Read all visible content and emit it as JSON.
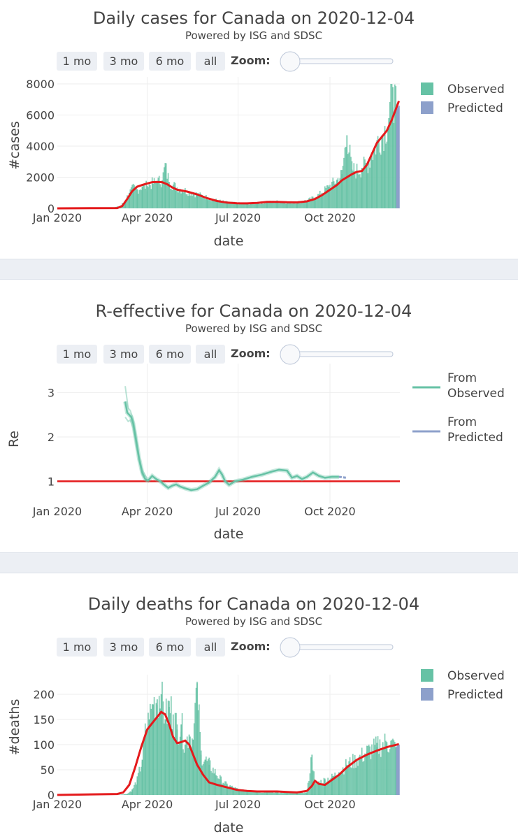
{
  "range_buttons": [
    "1 mo",
    "3 mo",
    "6 mo",
    "all"
  ],
  "zoom_label": "Zoom:",
  "subtitle": "Powered by ISG and SDSC",
  "colors": {
    "observed": "#66c2a5",
    "predicted": "#8da0cb",
    "trend": "#e41a1c",
    "from_observed": "#66c2a5",
    "from_predicted": "#8da0cb"
  },
  "chart_data": [
    {
      "type": "bar",
      "title": "Daily cases for Canada on 2020-12-04",
      "xlabel": "date",
      "ylabel": "#cases",
      "xlim": [
        "2020-01-01",
        "2020-12-04"
      ],
      "ylim": [
        0,
        8000
      ],
      "x_ticks": [
        "Jan 2020",
        "Apr 2020",
        "Jul 2020",
        "Oct 2020"
      ],
      "y_ticks": [
        0,
        2000,
        4000,
        6000,
        8000
      ],
      "grid": true,
      "legend": {
        "position": "top-right",
        "entries": [
          "Observed",
          "Predicted"
        ]
      },
      "observed": [
        [
          0,
          0
        ],
        [
          40,
          5
        ],
        [
          55,
          30
        ],
        [
          63,
          150
        ],
        [
          68,
          500
        ],
        [
          72,
          1000
        ],
        [
          76,
          1300
        ],
        [
          80,
          1200
        ],
        [
          85,
          1400
        ],
        [
          90,
          1450
        ],
        [
          95,
          1600
        ],
        [
          100,
          1700
        ],
        [
          105,
          1800
        ],
        [
          108,
          2700
        ],
        [
          112,
          1700
        ],
        [
          118,
          1400
        ],
        [
          125,
          1200
        ],
        [
          132,
          1050
        ],
        [
          140,
          900
        ],
        [
          150,
          700
        ],
        [
          160,
          500
        ],
        [
          170,
          380
        ],
        [
          180,
          320
        ],
        [
          190,
          300
        ],
        [
          200,
          330
        ],
        [
          210,
          400
        ],
        [
          220,
          430
        ],
        [
          230,
          380
        ],
        [
          240,
          380
        ],
        [
          250,
          500
        ],
        [
          258,
          700
        ],
        [
          265,
          1000
        ],
        [
          272,
          1400
        ],
        [
          280,
          1800
        ],
        [
          285,
          2200
        ],
        [
          290,
          4700
        ],
        [
          295,
          2500
        ],
        [
          300,
          2400
        ],
        [
          305,
          2600
        ],
        [
          310,
          2800
        ],
        [
          315,
          3400
        ],
        [
          320,
          4200
        ],
        [
          325,
          4700
        ],
        [
          328,
          5000
        ],
        [
          332,
          5800
        ],
        [
          336,
          7800
        ],
        [
          339,
          6300
        ]
      ],
      "predicted": [
        [
          339,
          6300
        ],
        [
          342,
          6600
        ]
      ],
      "trend": [
        [
          0,
          0
        ],
        [
          60,
          20
        ],
        [
          65,
          150
        ],
        [
          70,
          600
        ],
        [
          75,
          1100
        ],
        [
          80,
          1400
        ],
        [
          85,
          1500
        ],
        [
          90,
          1600
        ],
        [
          95,
          1680
        ],
        [
          100,
          1700
        ],
        [
          105,
          1680
        ],
        [
          110,
          1550
        ],
        [
          115,
          1350
        ],
        [
          120,
          1200
        ],
        [
          130,
          1080
        ],
        [
          140,
          900
        ],
        [
          150,
          650
        ],
        [
          160,
          470
        ],
        [
          170,
          370
        ],
        [
          180,
          330
        ],
        [
          190,
          320
        ],
        [
          200,
          350
        ],
        [
          210,
          420
        ],
        [
          220,
          420
        ],
        [
          230,
          390
        ],
        [
          240,
          380
        ],
        [
          250,
          450
        ],
        [
          258,
          600
        ],
        [
          265,
          850
        ],
        [
          272,
          1150
        ],
        [
          280,
          1500
        ],
        [
          285,
          1800
        ],
        [
          290,
          2000
        ],
        [
          295,
          2200
        ],
        [
          300,
          2350
        ],
        [
          305,
          2400
        ],
        [
          310,
          2800
        ],
        [
          315,
          3500
        ],
        [
          320,
          4200
        ],
        [
          325,
          4600
        ],
        [
          330,
          5000
        ],
        [
          335,
          5700
        ],
        [
          342,
          6900
        ]
      ]
    },
    {
      "type": "line",
      "title": "R-effective for Canada on 2020-12-04",
      "xlabel": "date",
      "ylabel": "Re",
      "xlim": [
        "2020-01-01",
        "2020-12-04"
      ],
      "ylim": [
        0.5,
        3.5
      ],
      "x_ticks": [
        "Jan 2020",
        "Apr 2020",
        "Jul 2020",
        "Oct 2020"
      ],
      "y_ticks": [
        1,
        2,
        3
      ],
      "grid": true,
      "reference_line": 1,
      "legend": {
        "position": "top-right",
        "entries": [
          "From Observed",
          "From Predicted"
        ]
      },
      "from_observed": [
        [
          68,
          2.8
        ],
        [
          70,
          2.55
        ],
        [
          72,
          2.5
        ],
        [
          74,
          2.45
        ],
        [
          76,
          2.3
        ],
        [
          79,
          1.9
        ],
        [
          82,
          1.5
        ],
        [
          85,
          1.2
        ],
        [
          88,
          1.05
        ],
        [
          91,
          1.02
        ],
        [
          95,
          1.12
        ],
        [
          99,
          1.05
        ],
        [
          103,
          1.0
        ],
        [
          107,
          0.92
        ],
        [
          111,
          0.85
        ],
        [
          115,
          0.9
        ],
        [
          119,
          0.93
        ],
        [
          123,
          0.88
        ],
        [
          128,
          0.84
        ],
        [
          134,
          0.8
        ],
        [
          140,
          0.82
        ],
        [
          146,
          0.9
        ],
        [
          152,
          0.97
        ],
        [
          158,
          1.1
        ],
        [
          162,
          1.25
        ],
        [
          165,
          1.15
        ],
        [
          168,
          1.0
        ],
        [
          172,
          0.92
        ],
        [
          178,
          1.0
        ],
        [
          185,
          1.03
        ],
        [
          195,
          1.1
        ],
        [
          205,
          1.15
        ],
        [
          215,
          1.22
        ],
        [
          222,
          1.26
        ],
        [
          230,
          1.24
        ],
        [
          235,
          1.08
        ],
        [
          240,
          1.12
        ],
        [
          245,
          1.05
        ],
        [
          250,
          1.1
        ],
        [
          256,
          1.2
        ],
        [
          262,
          1.12
        ],
        [
          268,
          1.08
        ],
        [
          275,
          1.1
        ],
        [
          282,
          1.1
        ]
      ],
      "from_predicted": [
        [
          282,
          1.1
        ],
        [
          289,
          1.08
        ]
      ],
      "band_upper": [
        [
          68,
          3.15
        ],
        [
          71,
          2.65
        ],
        [
          73,
          2.6
        ],
        [
          76,
          2.4
        ],
        [
          79,
          2.0
        ],
        [
          82,
          1.55
        ],
        [
          85,
          1.25
        ],
        [
          90,
          1.06
        ]
      ],
      "band_lower": [
        [
          68,
          2.45
        ],
        [
          71,
          2.35
        ],
        [
          73,
          2.38
        ],
        [
          76,
          2.2
        ],
        [
          79,
          1.8
        ],
        [
          82,
          1.45
        ],
        [
          85,
          1.15
        ],
        [
          90,
          0.98
        ]
      ]
    },
    {
      "type": "bar",
      "title": "Daily deaths for Canada on 2020-12-04",
      "xlabel": "date",
      "ylabel": "#deaths",
      "xlim": [
        "2020-01-01",
        "2020-12-04"
      ],
      "ylim": [
        0,
        225
      ],
      "x_ticks": [
        "Jan 2020",
        "Apr 2020",
        "Jul 2020",
        "Oct 2020"
      ],
      "y_ticks": [
        0,
        50,
        100,
        150,
        200
      ],
      "grid": true,
      "legend": {
        "position": "top-right",
        "entries": [
          "Observed",
          "Predicted"
        ]
      },
      "observed": [
        [
          0,
          0
        ],
        [
          60,
          0
        ],
        [
          70,
          2
        ],
        [
          75,
          10
        ],
        [
          80,
          30
        ],
        [
          85,
          70
        ],
        [
          88,
          120
        ],
        [
          92,
          150
        ],
        [
          96,
          180
        ],
        [
          100,
          190
        ],
        [
          104,
          200
        ],
        [
          108,
          150
        ],
        [
          112,
          175
        ],
        [
          116,
          160
        ],
        [
          120,
          130
        ],
        [
          124,
          140
        ],
        [
          128,
          100
        ],
        [
          132,
          120
        ],
        [
          136,
          110
        ],
        [
          140,
          222
        ],
        [
          144,
          80
        ],
        [
          148,
          70
        ],
        [
          152,
          60
        ],
        [
          158,
          45
        ],
        [
          164,
          30
        ],
        [
          170,
          20
        ],
        [
          176,
          15
        ],
        [
          182,
          10
        ],
        [
          190,
          8
        ],
        [
          200,
          6
        ],
        [
          210,
          5
        ],
        [
          220,
          5
        ],
        [
          230,
          4
        ],
        [
          240,
          4
        ],
        [
          250,
          5
        ],
        [
          255,
          80
        ],
        [
          258,
          20
        ],
        [
          262,
          25
        ],
        [
          268,
          30
        ],
        [
          275,
          35
        ],
        [
          282,
          45
        ],
        [
          290,
          60
        ],
        [
          300,
          70
        ],
        [
          310,
          85
        ],
        [
          320,
          95
        ],
        [
          330,
          105
        ],
        [
          339,
          95
        ]
      ],
      "predicted": [
        [
          339,
          95
        ],
        [
          342,
          100
        ]
      ],
      "trend": [
        [
          0,
          0
        ],
        [
          60,
          2
        ],
        [
          66,
          5
        ],
        [
          72,
          20
        ],
        [
          78,
          55
        ],
        [
          84,
          95
        ],
        [
          90,
          130
        ],
        [
          96,
          145
        ],
        [
          100,
          155
        ],
        [
          104,
          165
        ],
        [
          108,
          160
        ],
        [
          112,
          140
        ],
        [
          116,
          115
        ],
        [
          120,
          103
        ],
        [
          124,
          105
        ],
        [
          128,
          108
        ],
        [
          132,
          100
        ],
        [
          136,
          80
        ],
        [
          140,
          60
        ],
        [
          146,
          40
        ],
        [
          152,
          25
        ],
        [
          160,
          20
        ],
        [
          170,
          15
        ],
        [
          180,
          10
        ],
        [
          190,
          8
        ],
        [
          200,
          7
        ],
        [
          210,
          7
        ],
        [
          220,
          7
        ],
        [
          230,
          6
        ],
        [
          240,
          5
        ],
        [
          250,
          8
        ],
        [
          255,
          18
        ],
        [
          258,
          28
        ],
        [
          262,
          22
        ],
        [
          268,
          20
        ],
        [
          275,
          30
        ],
        [
          282,
          40
        ],
        [
          290,
          55
        ],
        [
          300,
          70
        ],
        [
          310,
          80
        ],
        [
          320,
          88
        ],
        [
          330,
          95
        ],
        [
          342,
          101
        ]
      ]
    }
  ]
}
